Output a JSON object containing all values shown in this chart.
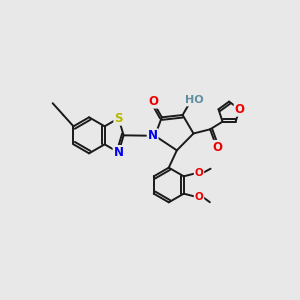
{
  "bg_color": "#e8e8e8",
  "bond_color": "#1a1a1a",
  "bond_width": 1.4,
  "atom_colors": {
    "S": "#b8b800",
    "N": "#0000ee",
    "O": "#ee0000",
    "HO": "#5f8fa0",
    "C": "#1a1a1a"
  },
  "fs": 8.5
}
